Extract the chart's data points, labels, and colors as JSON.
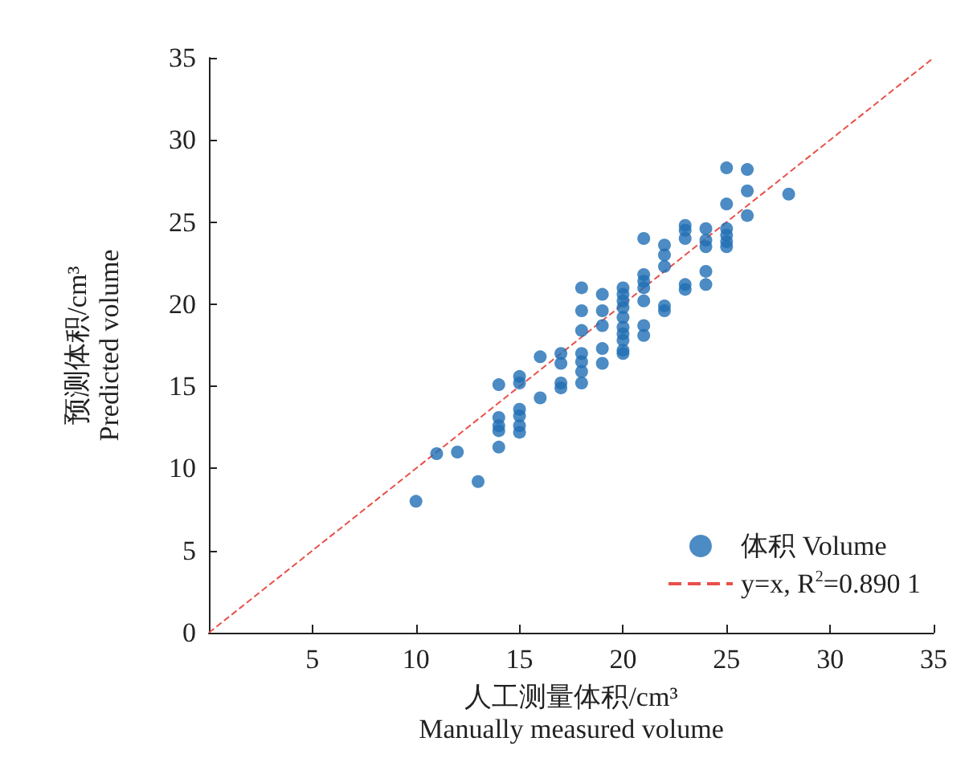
{
  "chart_data": {
    "type": "scatter",
    "xlabel": "人工测量体积/cm³\nManually measured volume",
    "ylabel": "预测体积/cm³\nPredicted volume",
    "xlim": [
      0,
      35
    ],
    "ylim": [
      0,
      35
    ],
    "xticks": [
      5,
      10,
      15,
      20,
      25,
      30,
      35
    ],
    "yticks": [
      0,
      5,
      10,
      15,
      20,
      25,
      30,
      35
    ],
    "grid": false,
    "legend": "bottom right",
    "marker": "circle",
    "series": [
      {
        "name": "体积 Volume",
        "color": "#1f6eb4",
        "x": [
          10,
          11,
          12,
          13,
          14,
          14,
          14,
          14,
          14,
          15,
          15,
          15,
          15,
          15,
          15,
          16,
          16,
          17,
          17,
          17,
          17,
          18,
          18,
          18,
          18,
          18,
          18,
          18,
          19,
          19,
          19,
          19,
          19,
          20,
          20,
          20,
          20,
          20,
          20,
          20,
          20,
          20,
          20,
          21,
          21,
          21,
          21,
          21,
          21,
          21,
          22,
          22,
          22,
          22,
          22,
          23,
          23,
          23,
          23,
          23,
          24,
          24,
          24,
          24,
          24,
          25,
          25,
          25,
          25,
          25,
          25,
          26,
          26,
          26,
          28
        ],
        "values": [
          8.0,
          10.9,
          11.0,
          9.2,
          15.1,
          13.1,
          12.6,
          12.3,
          11.3,
          15.6,
          15.2,
          13.6,
          13.2,
          12.6,
          12.2,
          16.8,
          14.3,
          17.0,
          16.4,
          15.2,
          14.9,
          21.0,
          19.6,
          18.4,
          17.0,
          16.5,
          15.9,
          15.2,
          20.6,
          19.6,
          18.7,
          17.3,
          16.4,
          21.0,
          20.6,
          20.2,
          19.8,
          19.2,
          18.6,
          18.2,
          17.8,
          17.2,
          17.0,
          24.0,
          21.8,
          21.4,
          21.0,
          20.2,
          18.7,
          18.1,
          23.6,
          23.0,
          22.3,
          19.9,
          19.6,
          24.8,
          24.5,
          24.0,
          21.2,
          20.9,
          24.6,
          23.9,
          23.5,
          22.0,
          21.2,
          28.3,
          26.1,
          24.6,
          24.2,
          23.8,
          23.5,
          28.2,
          26.9,
          25.4,
          26.7
        ]
      },
      {
        "name": "y=x, R$^{2}$=0.890 1",
        "type": "line",
        "color": "#e8504a",
        "line_style": "dashed",
        "marker": "none",
        "x": [
          0,
          35
        ],
        "values": [
          0,
          35
        ]
      }
    ]
  }
}
